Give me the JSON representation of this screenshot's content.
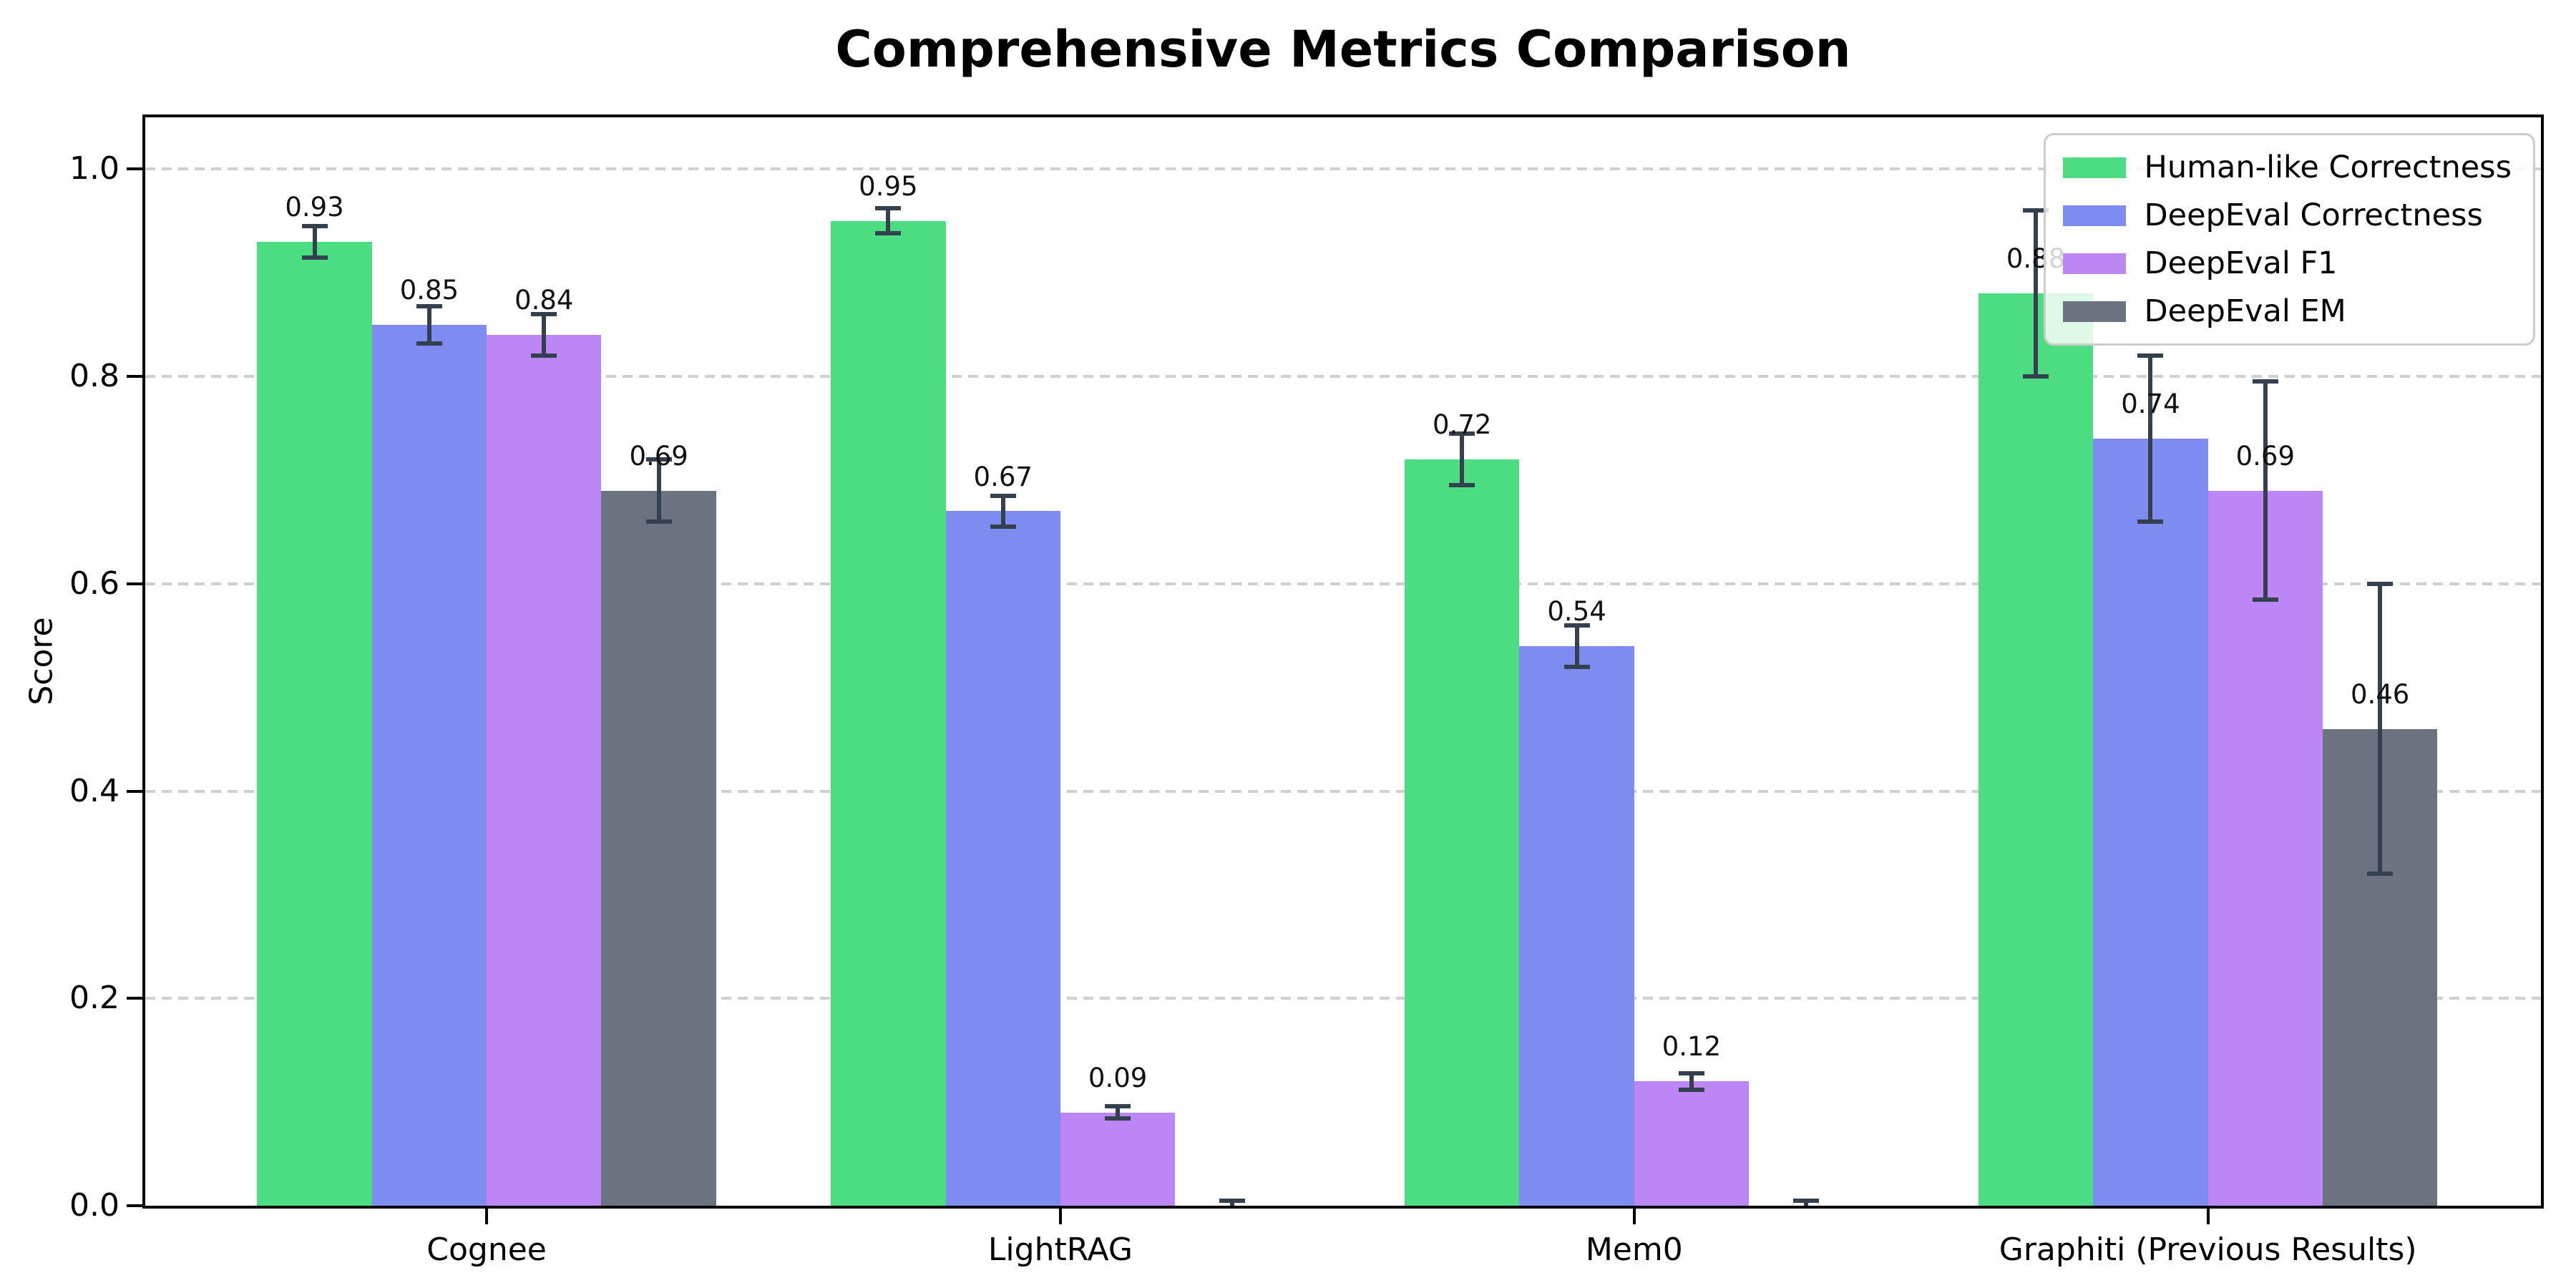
{
  "chart_data": {
    "type": "bar",
    "title": "Comprehensive Metrics Comparison",
    "ylabel": "Score",
    "xlabel": "",
    "categories": [
      "Cognee",
      "LightRAG",
      "Mem0",
      "Graphiti (Previous Results)"
    ],
    "series": [
      {
        "name": "Human-like Correctness",
        "color": "#4cdc82",
        "values": [
          0.93,
          0.95,
          0.72,
          0.88
        ],
        "errors": [
          0.015,
          0.012,
          0.025,
          0.08
        ],
        "bar_labels": [
          "0.93",
          "0.95",
          "0.72",
          "0.88"
        ]
      },
      {
        "name": "DeepEval Correctness",
        "color": "#7e8cf2",
        "values": [
          0.85,
          0.67,
          0.54,
          0.74
        ],
        "errors": [
          0.018,
          0.015,
          0.02,
          0.08
        ],
        "bar_labels": [
          "0.85",
          "0.67",
          "0.54",
          "0.74"
        ]
      },
      {
        "name": "DeepEval F1",
        "color": "#bc86f5",
        "values": [
          0.84,
          0.09,
          0.12,
          0.69
        ],
        "errors": [
          0.02,
          0.006,
          0.008,
          0.105
        ],
        "bar_labels": [
          "0.84",
          "0.09",
          "0.12",
          "0.69"
        ]
      },
      {
        "name": "DeepEval EM",
        "color": "#6b7280",
        "values": [
          0.69,
          0.0,
          0.0,
          0.46
        ],
        "errors": [
          0.03,
          0.005,
          0.005,
          0.14
        ],
        "bar_labels": [
          "0.69",
          "",
          "",
          "0.46"
        ]
      }
    ],
    "ytick_labels": [
      "0.0",
      "0.2",
      "0.4",
      "0.6",
      "0.8",
      "1.0"
    ],
    "yticks": [
      0.0,
      0.2,
      0.4,
      0.6,
      0.8,
      1.0
    ],
    "ylim": [
      0,
      1.05
    ],
    "grid": {
      "axis": "y",
      "style": "dashed",
      "color": "#cfcfcf"
    },
    "legend": {
      "position": "upper right",
      "entries": [
        "Human-like Correctness",
        "DeepEval Correctness",
        "DeepEval F1",
        "DeepEval EM"
      ]
    },
    "error_bar_color": "#35404f"
  }
}
